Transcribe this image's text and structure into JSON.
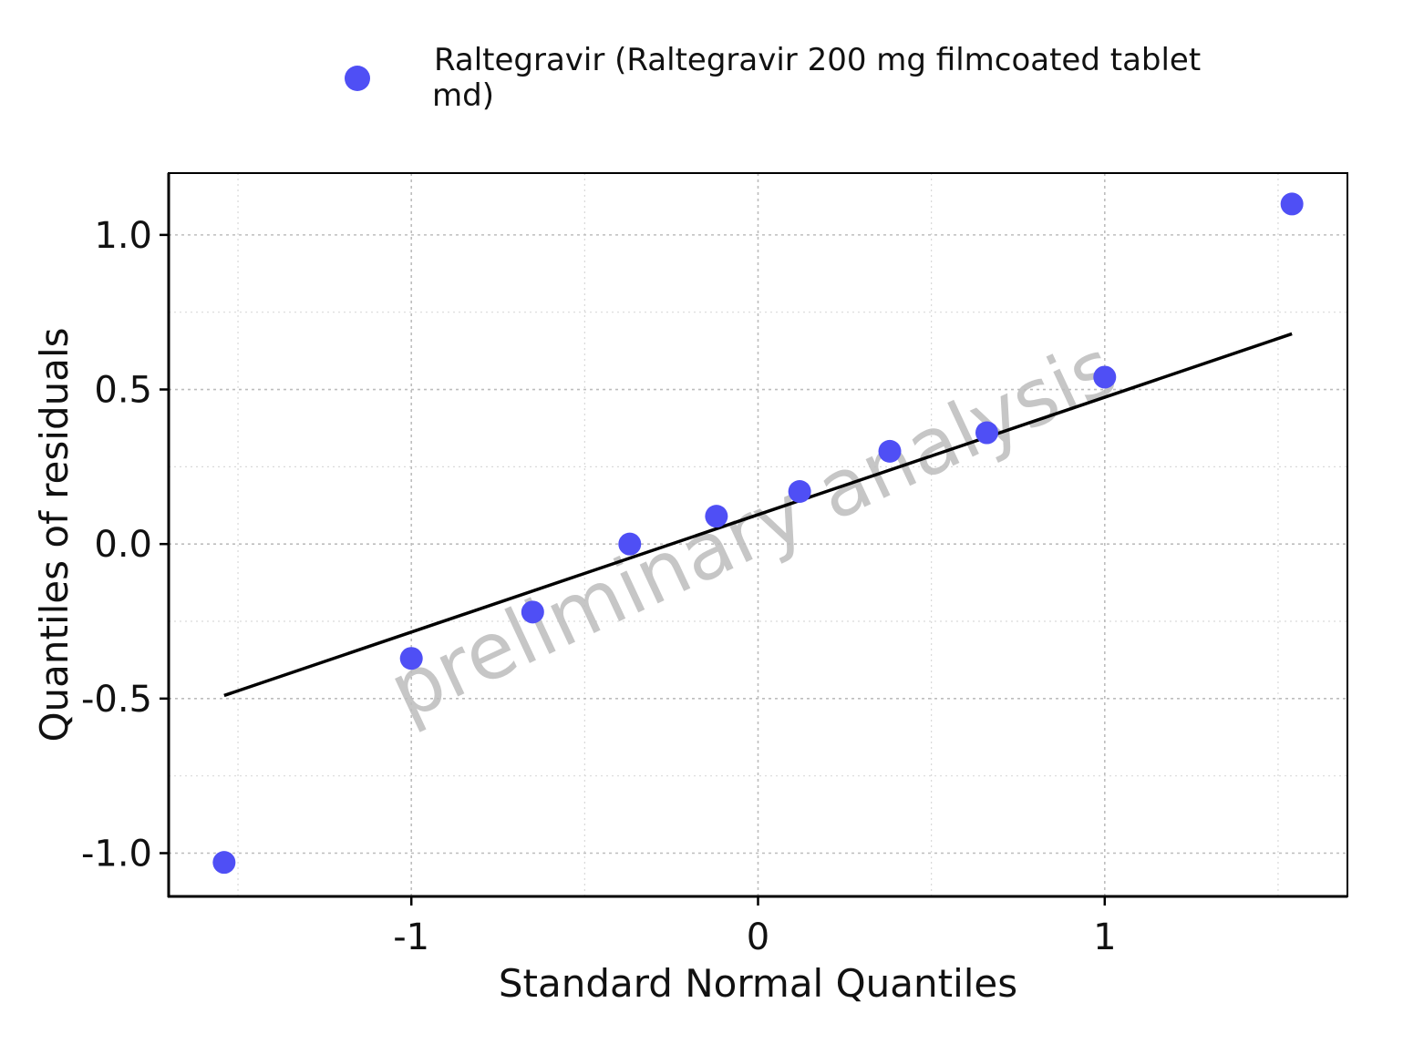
{
  "chart_data": {
    "type": "scatter",
    "xlabel": "Standard Normal Quantiles",
    "ylabel": "Quantiles of residuals",
    "xlim": [
      -1.7,
      1.7
    ],
    "ylim": [
      -1.14,
      1.2
    ],
    "x_ticks": [
      -1,
      0,
      1
    ],
    "x_tick_labels": [
      "-1",
      "0",
      "1"
    ],
    "y_ticks": [
      -1.0,
      -0.5,
      0.0,
      0.5,
      1.0
    ],
    "y_tick_labels": [
      "-1.0",
      "-0.5",
      "0.0",
      "0.5",
      "1.0"
    ],
    "grid": true,
    "legend_position": "top",
    "watermark": "preliminary analysis",
    "series": [
      {
        "name": "Raltegravir (Raltegravir 200 mg filmcoated tablet md)",
        "legend_lines": [
          "Raltegravir (Raltegravir 200 mg filmcoated tablet",
          "md)"
        ],
        "color": "#4f4ff5",
        "x": [
          -1.54,
          -1.0,
          -0.65,
          -0.37,
          -0.12,
          0.12,
          0.38,
          0.66,
          1.0,
          1.54
        ],
        "y": [
          -1.03,
          -0.37,
          -0.22,
          0.0,
          0.09,
          0.17,
          0.3,
          0.36,
          0.54,
          1.1
        ]
      }
    ],
    "reference_line": {
      "x": [
        -1.54,
        1.54
      ],
      "y": [
        -0.49,
        0.68
      ],
      "color": "#000000"
    }
  }
}
